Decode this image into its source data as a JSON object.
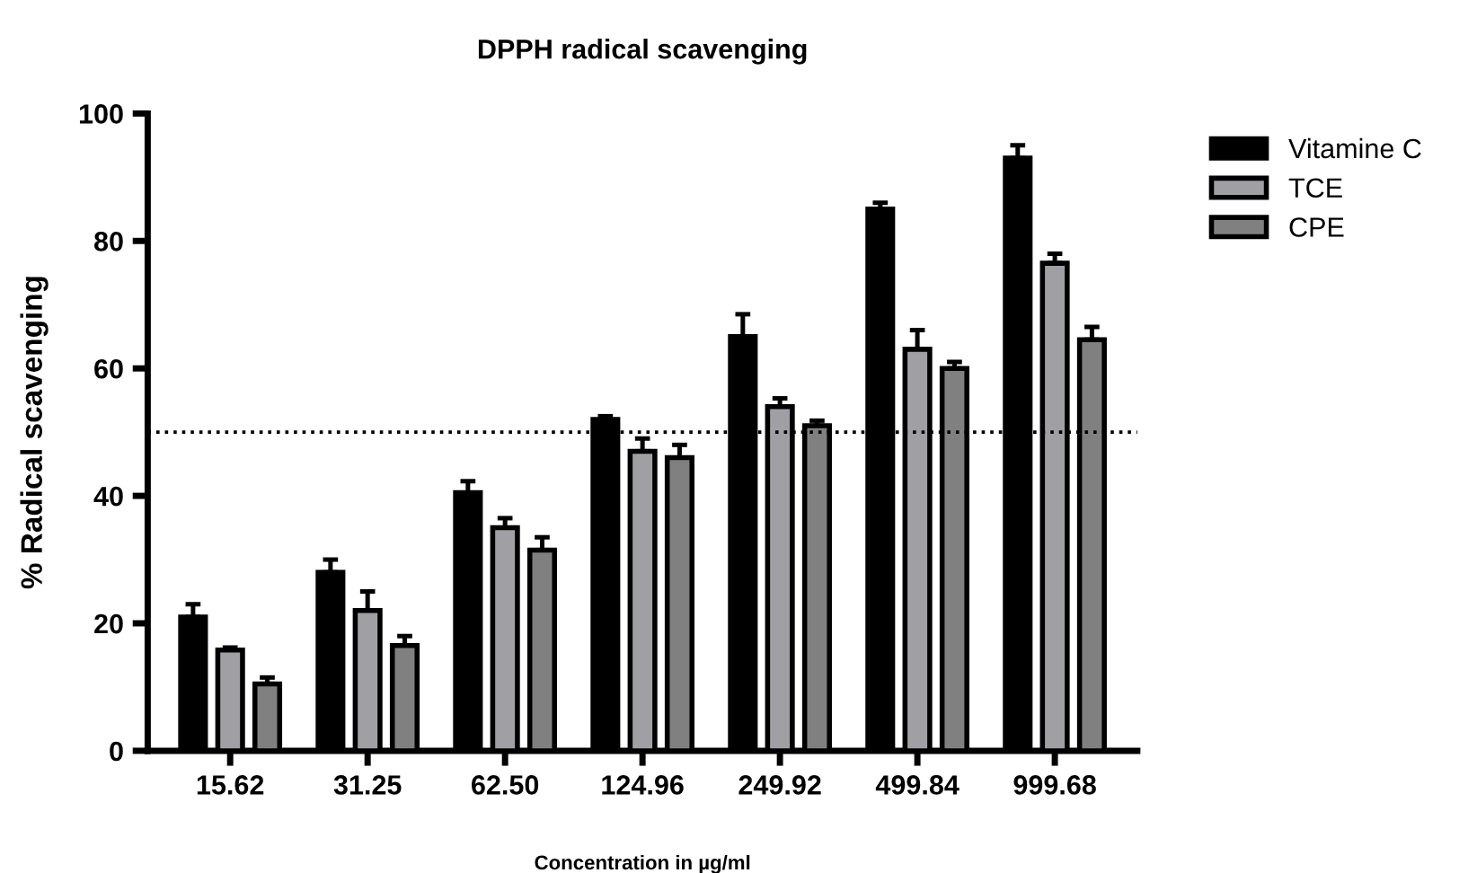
{
  "chart_data": {
    "type": "bar",
    "title": "DPPH radical scavenging",
    "xlabel": "Concentration in µg/ml",
    "ylabel": "% Radical scavenging",
    "categories": [
      "15.62",
      "31.25",
      "62.50",
      "124.96",
      "249.92",
      "499.84",
      "999.68"
    ],
    "series": [
      {
        "name": "Vitamine C",
        "color": "#000000",
        "values": [
          21,
          28,
          40.5,
          52,
          65,
          85,
          93
        ],
        "errors": [
          [
            21,
            23
          ],
          [
            28,
            30
          ],
          [
            40.5,
            42.3
          ],
          [
            52,
            52.5
          ],
          [
            65,
            68.5
          ],
          [
            85,
            86
          ],
          [
            93,
            95
          ]
        ]
      },
      {
        "name": "TCE",
        "color": "#a0a0a4",
        "values": [
          15.8,
          22,
          35,
          47,
          54,
          63,
          76.5
        ],
        "errors": [
          [
            15.8,
            16.2
          ],
          [
            22,
            25
          ],
          [
            35,
            36.5
          ],
          [
            47,
            49
          ],
          [
            54,
            55.3
          ],
          [
            63,
            66
          ],
          [
            76.5,
            78
          ]
        ]
      },
      {
        "name": "CPE",
        "color": "#808080",
        "values": [
          10.5,
          16.5,
          31.5,
          46,
          51,
          60,
          64.5
        ],
        "errors": [
          [
            10.5,
            11.5
          ],
          [
            16.5,
            18
          ],
          [
            31.5,
            33.5
          ],
          [
            46,
            48
          ],
          [
            51,
            51.8
          ],
          [
            60,
            61
          ],
          [
            64.5,
            66.5
          ]
        ]
      }
    ],
    "ylim": [
      0,
      100
    ],
    "yticks": [
      0,
      20,
      40,
      60,
      80,
      100
    ],
    "ref_lines": [
      {
        "axis": "y",
        "value": 50,
        "line_style": "dotted",
        "color": "#000000"
      }
    ],
    "grid": false,
    "legend": "top right"
  }
}
